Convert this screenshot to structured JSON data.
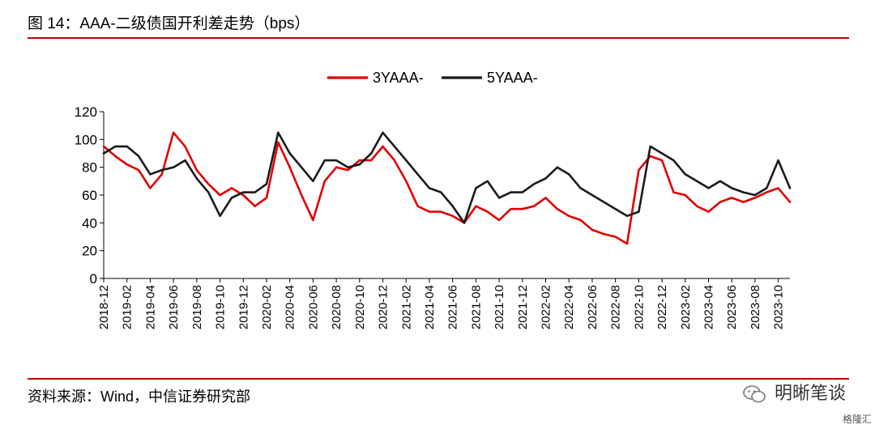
{
  "header": {
    "title": "图 14：AAA-二级债国开利差走势（bps）"
  },
  "footer": {
    "source": "资料来源：Wind，中信证券研究部"
  },
  "watermark": {
    "text": "明晰笔谈",
    "icon": "wechat-icon",
    "badge": "格隆汇"
  },
  "colors": {
    "rule": "#c00000",
    "series_3y": "#e00000",
    "series_5y": "#1a1a1a"
  },
  "chart_data": {
    "type": "line",
    "title": "",
    "xlabel": "",
    "ylabel": "",
    "ylim": [
      0,
      120
    ],
    "yticks": [
      0,
      20,
      40,
      60,
      80,
      100,
      120
    ],
    "grid": false,
    "legend": "top-center",
    "x_ticks": [
      "2018-12",
      "2019-02",
      "2019-04",
      "2019-06",
      "2019-08",
      "2019-10",
      "2019-12",
      "2020-02",
      "2020-04",
      "2020-06",
      "2020-08",
      "2020-10",
      "2020-12",
      "2021-02",
      "2021-04",
      "2021-06",
      "2021-08",
      "2021-10",
      "2021-12",
      "2022-02",
      "2022-04",
      "2022-06",
      "2022-08",
      "2022-10",
      "2022-12",
      "2023-02",
      "2023-04",
      "2023-06",
      "2023-08",
      "2023-10"
    ],
    "x": [
      "2018-12",
      "2019-01",
      "2019-02",
      "2019-03",
      "2019-04",
      "2019-05",
      "2019-06",
      "2019-07",
      "2019-08",
      "2019-09",
      "2019-10",
      "2019-11",
      "2019-12",
      "2020-01",
      "2020-02",
      "2020-03",
      "2020-04",
      "2020-05",
      "2020-06",
      "2020-07",
      "2020-08",
      "2020-09",
      "2020-10",
      "2020-11",
      "2020-12",
      "2021-01",
      "2021-02",
      "2021-03",
      "2021-04",
      "2021-05",
      "2021-06",
      "2021-07",
      "2021-08",
      "2021-09",
      "2021-10",
      "2021-11",
      "2021-12",
      "2022-01",
      "2022-02",
      "2022-03",
      "2022-04",
      "2022-05",
      "2022-06",
      "2022-07",
      "2022-08",
      "2022-09",
      "2022-10",
      "2022-11",
      "2022-12",
      "2023-01",
      "2023-02",
      "2023-03",
      "2023-04",
      "2023-05",
      "2023-06",
      "2023-07",
      "2023-08",
      "2023-09",
      "2023-10",
      "2023-11"
    ],
    "series": [
      {
        "name": "3YAAA-",
        "color": "#e00000",
        "values": [
          95,
          88,
          82,
          78,
          65,
          75,
          105,
          95,
          78,
          68,
          60,
          65,
          60,
          52,
          58,
          98,
          80,
          60,
          42,
          70,
          80,
          78,
          85,
          85,
          95,
          85,
          70,
          52,
          48,
          48,
          45,
          40,
          52,
          48,
          42,
          50,
          50,
          52,
          58,
          50,
          45,
          42,
          35,
          32,
          30,
          25,
          78,
          88,
          85,
          62,
          60,
          52,
          48,
          55,
          58,
          55,
          58,
          62,
          65,
          55
        ]
      },
      {
        "name": "5YAAA-",
        "color": "#1a1a1a",
        "values": [
          90,
          95,
          95,
          88,
          75,
          78,
          80,
          85,
          72,
          62,
          45,
          58,
          62,
          62,
          68,
          105,
          90,
          80,
          70,
          85,
          85,
          80,
          82,
          90,
          105,
          95,
          85,
          75,
          65,
          62,
          52,
          40,
          65,
          70,
          58,
          62,
          62,
          68,
          72,
          80,
          75,
          65,
          60,
          55,
          50,
          45,
          48,
          95,
          90,
          85,
          75,
          70,
          65,
          70,
          65,
          62,
          60,
          65,
          85,
          65
        ]
      }
    ]
  }
}
